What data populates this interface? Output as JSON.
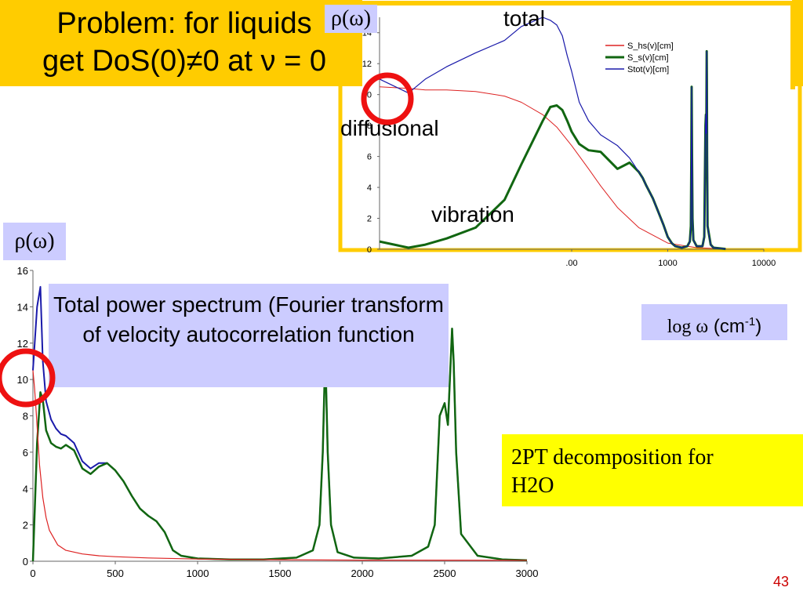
{
  "slide": {
    "title_line1": "Problem: for liquids",
    "title_line2": "get DoS(0)≠0 at ν = 0",
    "rho_label_top": "ρ(ω)",
    "rho_label_left": "ρ(ω)",
    "label_total": "total",
    "label_diffusional": "diffusional",
    "label_vibration": "vibration",
    "info_box": "Total power spectrum (Fourier transform of velocity autocorrelation function",
    "log_axis_prefix": "log ω",
    "log_axis_unit": "(cm",
    "log_axis_exp": "-1",
    "log_axis_close": ")",
    "decomp_line1": "2PT decomposition for",
    "decomp_line2": "H2O",
    "page_number": "43",
    "colors": {
      "title_bg": "#ffcc00",
      "label_bg": "#ccccff",
      "decomp_bg": "#ffff00",
      "circle": "#ee1111",
      "page_number": "#cc0000"
    }
  },
  "chart_data": [
    {
      "id": "linear-spectrum",
      "type": "line",
      "title": "",
      "xlabel": "",
      "ylabel": "",
      "xlim": [
        0,
        3000
      ],
      "ylim": [
        0,
        16
      ],
      "x_ticks": [
        0,
        500,
        1000,
        1500,
        2000,
        2500,
        3000
      ],
      "y_ticks": [
        0,
        2,
        4,
        6,
        8,
        10,
        12,
        14,
        16
      ],
      "series": [
        {
          "color": "#1a1aaa",
          "x": [
            0,
            25,
            45,
            60,
            80,
            110,
            140,
            170,
            200,
            250,
            300,
            350,
            400,
            450,
            500,
            550,
            600,
            650,
            700,
            750,
            800,
            850,
            900,
            1000,
            1200,
            1400,
            1600,
            1700,
            1740,
            1760,
            1775,
            1790,
            1810,
            1850,
            1950,
            2100,
            2300,
            2400,
            2440,
            2470,
            2500,
            2520,
            2545,
            2555,
            2570,
            2600,
            2700,
            2850,
            3000
          ],
          "y": [
            10.5,
            14,
            15.1,
            11,
            8.8,
            7.8,
            7.3,
            7,
            6.9,
            6.5,
            5.5,
            5.1,
            5.4,
            5.4,
            5,
            4.4,
            3.6,
            2.9,
            2.5,
            2.2,
            1.6,
            0.6,
            0.3,
            0.15,
            0.1,
            0.1,
            0.2,
            0.6,
            2,
            6,
            11.5,
            6,
            2,
            0.5,
            0.2,
            0.15,
            0.3,
            0.8,
            2,
            8,
            8.7,
            7.5,
            12.8,
            11,
            6,
            1.5,
            0.3,
            0.1,
            0.05
          ]
        },
        {
          "color": "#116611",
          "x": [
            0,
            25,
            45,
            60,
            80,
            110,
            140,
            170,
            200,
            250,
            300,
            350,
            400,
            450,
            500,
            550,
            600,
            650,
            700,
            750,
            800,
            850,
            900,
            1000,
            1200,
            1400,
            1600,
            1700,
            1740,
            1760,
            1775,
            1790,
            1810,
            1850,
            1950,
            2100,
            2300,
            2400,
            2440,
            2470,
            2500,
            2520,
            2545,
            2555,
            2570,
            2600,
            2700,
            2850,
            3000
          ],
          "y": [
            0,
            6.5,
            9.3,
            8.9,
            7.2,
            6.5,
            6.3,
            6.2,
            6.4,
            6.1,
            5.1,
            4.8,
            5.2,
            5.4,
            5,
            4.4,
            3.6,
            2.9,
            2.5,
            2.2,
            1.6,
            0.6,
            0.3,
            0.15,
            0.1,
            0.1,
            0.2,
            0.6,
            2,
            6,
            11.5,
            6,
            2,
            0.5,
            0.2,
            0.15,
            0.3,
            0.8,
            2,
            8,
            8.7,
            7.5,
            12.8,
            11,
            6,
            1.5,
            0.3,
            0.1,
            0.05
          ]
        },
        {
          "color": "#dd2222",
          "x": [
            0,
            10,
            20,
            40,
            60,
            80,
            100,
            150,
            200,
            300,
            400,
            500,
            700,
            1000,
            1500,
            2000,
            3000
          ],
          "y": [
            10.5,
            9.5,
            8.2,
            5.3,
            3.5,
            2.4,
            1.7,
            0.9,
            0.6,
            0.4,
            0.3,
            0.25,
            0.18,
            0.12,
            0.08,
            0.06,
            0.05
          ]
        }
      ]
    },
    {
      "id": "log-spectrum",
      "type": "line",
      "scale": "log",
      "xlim": [
        1,
        10000
      ],
      "ylim": [
        0,
        15
      ],
      "x_tick_labels_visible": [
        ".00",
        "1000",
        "10000"
      ],
      "y_tick_labels_visible": [
        "14",
        "12",
        "10",
        "8",
        "6",
        "4",
        "2",
        "0"
      ],
      "legend": {
        "placement": "top-right",
        "entries": [
          "S_hs(v)[cm]",
          "S_s(v)[cm]",
          "Stot(v)[cm]"
        ]
      },
      "series": [
        {
          "name": "S_hs(v)[cm]",
          "color": "#dd2222",
          "x": [
            1,
            2,
            3,
            5,
            10,
            20,
            30,
            50,
            70,
            100,
            150,
            200,
            300,
            500,
            1000,
            2000,
            4000
          ],
          "y": [
            10.5,
            10.4,
            10.3,
            10.3,
            10.2,
            9.9,
            9.5,
            8.7,
            7.9,
            6.7,
            5.2,
            4.1,
            2.7,
            1.4,
            0.4,
            0.1,
            0.02
          ]
        },
        {
          "name": "S_s(v)[cm]",
          "color": "#116611",
          "x": [
            1,
            2,
            3,
            5,
            10,
            20,
            30,
            50,
            60,
            70,
            80,
            90,
            100,
            120,
            150,
            200,
            300,
            400,
            500,
            550,
            600,
            700,
            800,
            900,
            1000,
            1100,
            1200,
            1400,
            1600,
            1700,
            1740,
            1760,
            1775,
            1790,
            1810,
            1850,
            2000,
            2300,
            2400,
            2470,
            2500,
            2520,
            2545,
            2555,
            2570,
            2600,
            2800,
            3000,
            4000
          ],
          "y": [
            0.5,
            0.1,
            0.3,
            0.7,
            1.4,
            3.2,
            5.5,
            8.3,
            9.2,
            9.3,
            9,
            8.3,
            7.6,
            6.8,
            6.4,
            6.3,
            5.2,
            5.6,
            5,
            4.6,
            4.1,
            3.3,
            2.4,
            1.6,
            0.8,
            0.4,
            0.2,
            0.1,
            0.2,
            0.5,
            1.5,
            6,
            10.5,
            6,
            2,
            0.6,
            0.2,
            0.2,
            0.8,
            8,
            8.7,
            7.5,
            12.8,
            11,
            6,
            1.5,
            0.3,
            0.1,
            0.02
          ]
        },
        {
          "name": "Stot(v)[cm]",
          "color": "#1a1aaa",
          "x": [
            1,
            2,
            3,
            5,
            10,
            20,
            30,
            50,
            60,
            70,
            80,
            90,
            100,
            120,
            150,
            200,
            300,
            400,
            500,
            550,
            600,
            700,
            800,
            900,
            1000,
            1100,
            1200,
            1400,
            1600,
            1700,
            1740,
            1760,
            1775,
            1790,
            1810,
            1850,
            2000,
            2300,
            2400,
            2470,
            2500,
            2520,
            2545,
            2555,
            2570,
            2600,
            2800,
            3000,
            4000
          ],
          "y": [
            11,
            10.1,
            11,
            11.8,
            12.7,
            13.5,
            14.4,
            15,
            14.8,
            14.5,
            13.8,
            12.5,
            11.5,
            9.5,
            8.3,
            7.4,
            6.7,
            5.9,
            5,
            4.6,
            4.1,
            3.3,
            2.4,
            1.6,
            0.8,
            0.4,
            0.2,
            0.1,
            0.2,
            0.5,
            1.5,
            6,
            10.5,
            6,
            2,
            0.6,
            0.2,
            0.2,
            0.8,
            8,
            8.7,
            7.5,
            12.8,
            11,
            6,
            1.5,
            0.3,
            0.1,
            0.02
          ]
        }
      ]
    }
  ]
}
